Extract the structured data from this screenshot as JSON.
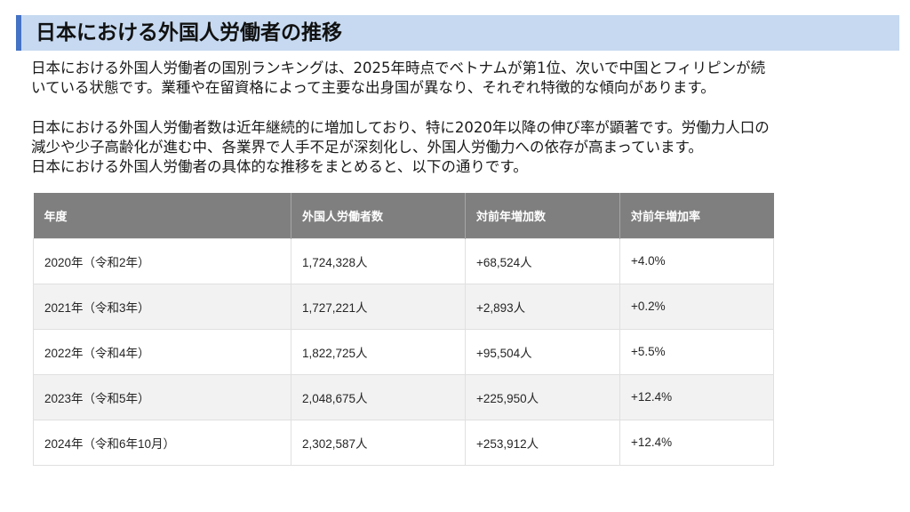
{
  "title": "日本における外国人労働者の推移",
  "paragraph1": [
    "日本における外国人労働者の国別ランキングは、2025年時点でベトナムが第1位、次いで中国とフィリピンが続",
    "いている状態です。業種や在留資格によって主要な出身国が異なり、それぞれ特徴的な傾向があります。"
  ],
  "paragraph2": [
    "日本における外国人労働者数は近年継続的に増加しており、特に2020年以降の伸び率が顕著です。労働力人口の",
    "減少や少子高齢化が進む中、各業界で人手不足が深刻化し、外国人労働力への依存が高まっています。",
    "日本における外国人労働者の具体的な推移をまとめると、以下の通りです。"
  ],
  "table": {
    "headers": [
      "年度",
      "外国人労働者数",
      "対前年増加数",
      "対前年増加率"
    ],
    "rows": [
      [
        "2020年（令和2年）",
        "1,724,328人",
        "+68,524人",
        "+4.0%"
      ],
      [
        "2021年（令和3年）",
        "1,727,221人",
        "+2,893人",
        "+0.2%"
      ],
      [
        "2022年（令和4年）",
        "1,822,725人",
        "+95,504人",
        "+5.5%"
      ],
      [
        "2023年（令和5年）",
        "2,048,675人",
        "+225,950人",
        "+12.4%"
      ],
      [
        "2024年（令和6年10月）",
        "2,302,587人",
        "+253,912人",
        "+12.4%"
      ]
    ]
  },
  "colors": {
    "title_background": "#c6d9f0",
    "title_accent": "#4472c4",
    "table_header": "#7f7f7f",
    "row_stripe": "#f2f2f2"
  }
}
